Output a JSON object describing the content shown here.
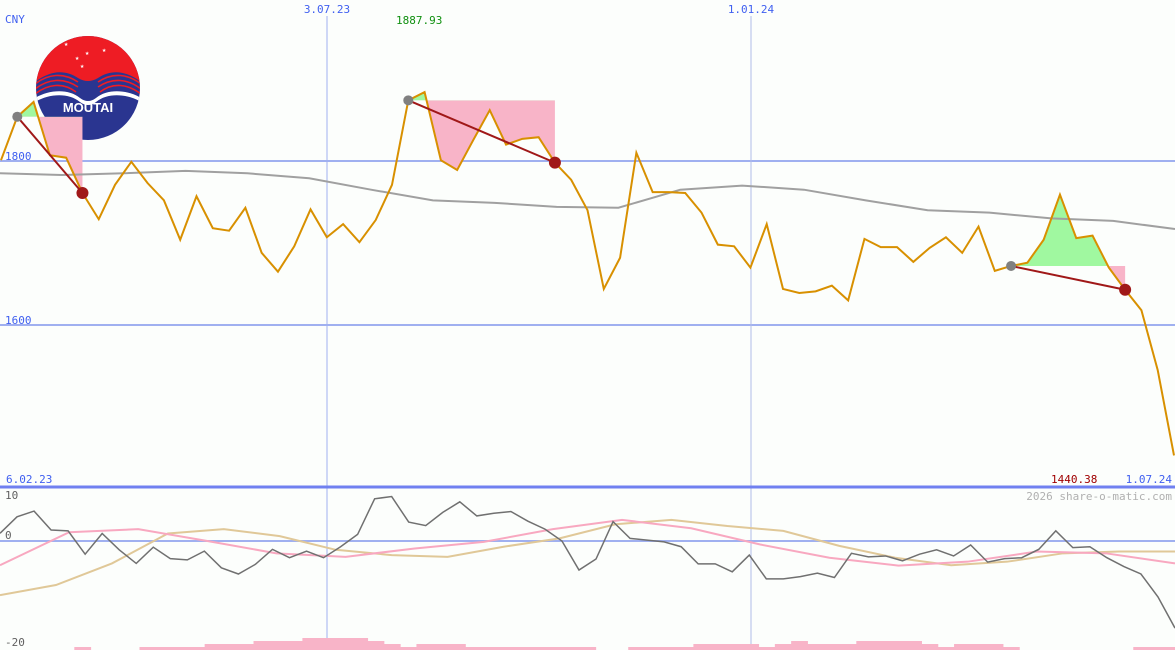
{
  "chart_data": [
    {
      "type": "line",
      "currency_label": "CNY",
      "logo_text": "MOUTAI",
      "x_range": [
        "6.02.23",
        "1.07.24"
      ],
      "x_ticks": [
        "6.02.23",
        "3.07.23",
        "1.01.24",
        "1.07.24"
      ],
      "y_ticks": [
        1800,
        1600
      ],
      "y_tick_labels": [
        "1800",
        "1600"
      ],
      "ylim": [
        1440,
        1995
      ],
      "grid": true,
      "max_label": "1887.93",
      "last_label": "1440.38",
      "colors": {
        "price": "#d89000",
        "ma": "#a0a0a0",
        "grid": "#a0b0f0",
        "trade_line": "#a01818",
        "loss_fill": "#f8b4c8",
        "gain_fill": "#a0f8a0",
        "max_label": "#109010",
        "last_label": "#a00000",
        "axis_text": "#4060f0"
      },
      "price": [
        1801,
        1854,
        1872,
        1807,
        1804,
        1761,
        1729,
        1771,
        1799,
        1773,
        1752,
        1704,
        1757,
        1718,
        1715,
        1743,
        1688,
        1665,
        1696,
        1741,
        1707,
        1723,
        1701,
        1728,
        1771,
        1874,
        1884,
        1801,
        1789,
        1826,
        1862,
        1820,
        1827,
        1829,
        1798,
        1777,
        1740,
        1644,
        1682,
        1810,
        1762,
        1762,
        1761,
        1737,
        1698,
        1696,
        1670,
        1723,
        1644,
        1639,
        1641,
        1648,
        1630,
        1705,
        1695,
        1695,
        1677,
        1694,
        1707,
        1688,
        1720,
        1666,
        1672,
        1676,
        1704,
        1759,
        1706,
        1709,
        1670,
        1643,
        1618,
        1545,
        1441
      ],
      "moving_average": [
        1785,
        1783,
        1785,
        1788,
        1785,
        1779,
        1765,
        1752,
        1749,
        1744,
        1743,
        1765,
        1770,
        1765,
        1752,
        1740,
        1737,
        1730,
        1727,
        1717
      ],
      "trades": [
        {
          "entry_index": 1,
          "exit_index": 5
        },
        {
          "entry_index": 25,
          "exit_index": 34
        },
        {
          "entry_index": 62,
          "exit_index": 69
        }
      ]
    },
    {
      "type": "line",
      "y_tick_labels": [
        "10",
        "0",
        "-20"
      ],
      "ylim": [
        -23,
        10
      ],
      "watermark": "2026 share-o-matic.com",
      "colors": {
        "oscillator": "#707070",
        "signal_pink": "#f8a8c0",
        "signal_tan": "#e0c898",
        "volume": "#f8b4c8",
        "zero": "#a0b0f0"
      },
      "oscillator": [
        1.75,
        5.5,
        6.8,
        2.5,
        2.3,
        -3.0,
        1.7,
        -2.0,
        -5.1,
        -1.4,
        -4.0,
        -4.3,
        -2.3,
        -6.1,
        -7.5,
        -5.3,
        -1.9,
        -3.8,
        -2.3,
        -3.8,
        -1.3,
        1.5,
        9.6,
        10.1,
        4.3,
        3.5,
        6.5,
        8.9,
        5.7,
        6.3,
        6.7,
        4.5,
        2.7,
        0,
        -6.6,
        -4.1,
        4.4,
        0.6,
        0.2,
        -0.2,
        -1.3,
        -5.2,
        -5.2,
        -7.0,
        -3.2,
        -8.6,
        -8.6,
        -8.1,
        -7.3,
        -8.3,
        -2.8,
        -3.6,
        -3.4,
        -4.5,
        -3.0,
        -2.0,
        -3.4,
        -0.9,
        -4.8,
        -4.0,
        -3.8,
        -1.9,
        2.3,
        -1.5,
        -1.3,
        -3.8,
        -5.8,
        -7.5,
        -12.7,
        -19.8
      ],
      "signal_pink": [
        -5.5,
        2.0,
        2.7,
        0,
        -2.8,
        -3.6,
        -1.7,
        -0.2,
        2.7,
        4.8,
        2.9,
        -0.8,
        -3.8,
        -5.6,
        -4.7,
        -2.4,
        -2.8,
        -5.1
      ],
      "signal_tan": [
        -12.3,
        -10.0,
        -5.1,
        1.7,
        2.7,
        1.1,
        -2.0,
        -3.2,
        -3.6,
        -1.3,
        0.6,
        3.8,
        4.8,
        3.4,
        2.3,
        -1.1,
        -3.8,
        -5.5,
        -4.7,
        -2.8,
        -2.4,
        -2.4
      ],
      "volume_level": [
        0,
        0,
        0,
        0,
        0,
        1,
        0,
        0,
        0,
        1,
        1,
        1,
        1,
        2,
        2,
        2,
        3,
        3,
        3,
        4,
        4,
        4,
        4,
        3,
        2,
        1,
        2,
        2,
        2,
        1,
        1,
        1,
        1,
        1,
        1,
        1,
        1,
        0,
        0,
        1,
        1,
        1,
        1,
        2,
        2,
        2,
        2,
        1,
        2,
        3,
        2,
        2,
        2,
        3,
        3,
        3,
        3,
        2,
        1,
        2,
        2,
        2,
        1,
        0,
        0,
        0,
        0,
        0,
        0,
        0,
        1,
        1,
        1
      ]
    }
  ]
}
